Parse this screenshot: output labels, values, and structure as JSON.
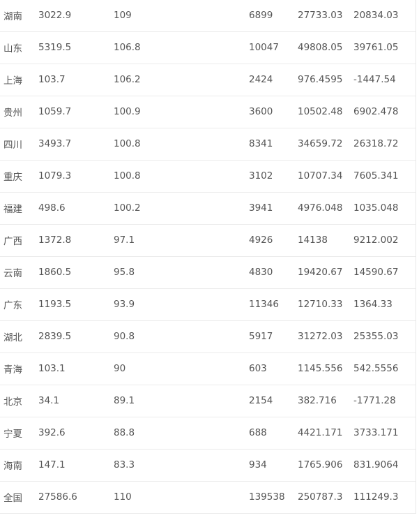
{
  "rows": [
    [
      "湖南",
      "3022.9",
      "109",
      "6899",
      "27733.03",
      "20834.03"
    ],
    [
      "山东",
      "5319.5",
      "106.8",
      "10047",
      "49808.05",
      "39761.05"
    ],
    [
      "上海",
      "103.7",
      "106.2",
      "2424",
      "976.4595",
      "-1447.54"
    ],
    [
      "贵州",
      "1059.7",
      "100.9",
      "3600",
      "10502.48",
      "6902.478"
    ],
    [
      "四川",
      "3493.7",
      "100.8",
      "8341",
      "34659.72",
      "26318.72"
    ],
    [
      "重庆",
      "1079.3",
      "100.8",
      "3102",
      "10707.34",
      "7605.341"
    ],
    [
      "福建",
      "498.6",
      "100.2",
      "3941",
      "4976.048",
      "1035.048"
    ],
    [
      "广西",
      "1372.8",
      "97.1",
      "4926",
      "14138",
      "9212.002"
    ],
    [
      "云南",
      "1860.5",
      "95.8",
      "4830",
      "19420.67",
      "14590.67"
    ],
    [
      "广东",
      "1193.5",
      "93.9",
      "11346",
      "12710.33",
      "1364.33"
    ],
    [
      "湖北",
      "2839.5",
      "90.8",
      "5917",
      "31272.03",
      "25355.03"
    ],
    [
      "青海",
      "103.1",
      "90",
      "603",
      "1145.556",
      "542.5556"
    ],
    [
      "北京",
      "34.1",
      "89.1",
      "2154",
      "382.716",
      "-1771.28"
    ],
    [
      "宁夏",
      "392.6",
      "88.8",
      "688",
      "4421.171",
      "3733.171"
    ],
    [
      "海南",
      "147.1",
      "83.3",
      "934",
      "1765.906",
      "831.9064"
    ],
    [
      "全国",
      "27586.6",
      "110",
      "139538",
      "250787.3",
      "111249.3"
    ]
  ]
}
